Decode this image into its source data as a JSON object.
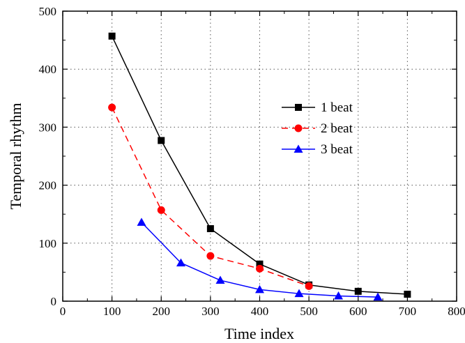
{
  "chart_data": {
    "type": "line",
    "title": "",
    "xlabel": "Time index",
    "ylabel": "Temporal rhythm",
    "xlim": [
      0,
      800
    ],
    "ylim": [
      0,
      500
    ],
    "xticks": [
      0,
      100,
      200,
      300,
      400,
      500,
      600,
      700,
      800
    ],
    "yticks": [
      0,
      100,
      200,
      300,
      400,
      500
    ],
    "grid": true,
    "legend_position": "center-right",
    "series": [
      {
        "name": "1 beat",
        "color": "#000000",
        "marker": "square",
        "line_style": "solid",
        "x": [
          100,
          200,
          300,
          400,
          500,
          600,
          700
        ],
        "y": [
          457,
          277,
          125,
          64,
          28,
          17,
          12
        ]
      },
      {
        "name": "2 beat",
        "color": "#ff0000",
        "marker": "circle",
        "line_style": "dashed",
        "x": [
          100,
          200,
          300,
          400,
          500
        ],
        "y": [
          334,
          157,
          78,
          56,
          26
        ]
      },
      {
        "name": "3 beat",
        "color": "#0000ff",
        "marker": "triangle",
        "line_style": "solid",
        "x": [
          160,
          240,
          320,
          400,
          480,
          560,
          640
        ],
        "y": [
          136,
          66,
          36,
          20,
          13,
          9,
          7
        ]
      }
    ]
  }
}
